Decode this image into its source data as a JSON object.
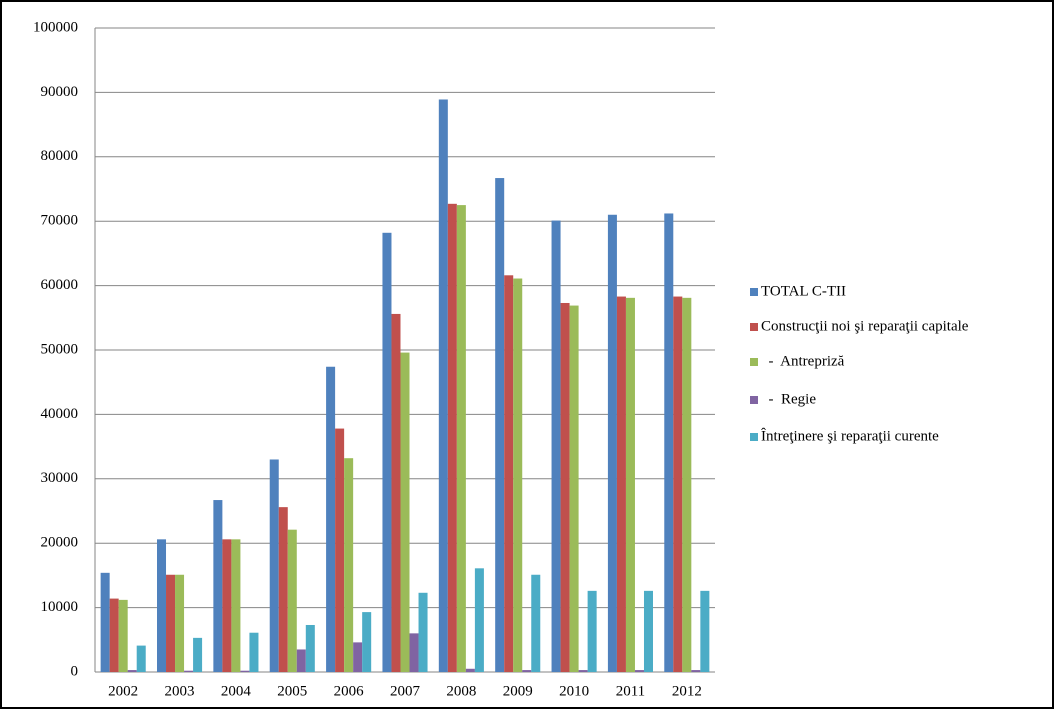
{
  "chart_data": {
    "type": "bar",
    "categories": [
      "2002",
      "2003",
      "2004",
      "2005",
      "2006",
      "2007",
      "2008",
      "2009",
      "2010",
      "2011",
      "2012"
    ],
    "series": [
      {
        "name": "TOTAL C-TII",
        "color": "#4f81bd",
        "values": [
          15400,
          20600,
          26700,
          33000,
          47400,
          68200,
          88900,
          76700,
          70100,
          71000,
          71200
        ]
      },
      {
        "name": "Construcţii noi şi reparaţii capitale",
        "color": "#c0504d",
        "values": [
          11400,
          15100,
          20600,
          25600,
          37800,
          55600,
          72700,
          61600,
          57300,
          58300,
          58300
        ]
      },
      {
        "name": "  -  Antrepriză",
        "color": "#9bbb59",
        "values": [
          11200,
          15100,
          20600,
          22100,
          33200,
          49600,
          72500,
          61100,
          56900,
          58100,
          58100
        ]
      },
      {
        "name": "  -  Regie",
        "color": "#8064a2",
        "values": [
          300,
          200,
          200,
          3500,
          4600,
          6000,
          500,
          300,
          300,
          300,
          300
        ]
      },
      {
        "name": "Întreţinere şi reparaţii curente",
        "color": "#4bacc6",
        "values": [
          4100,
          5300,
          6100,
          7300,
          9300,
          12300,
          16100,
          15100,
          12600,
          12600,
          12600
        ]
      }
    ],
    "ylim": [
      0,
      100000
    ],
    "yticks": [
      0,
      10000,
      20000,
      30000,
      40000,
      50000,
      60000,
      70000,
      80000,
      90000,
      100000
    ],
    "grid": true,
    "legend": "right"
  }
}
